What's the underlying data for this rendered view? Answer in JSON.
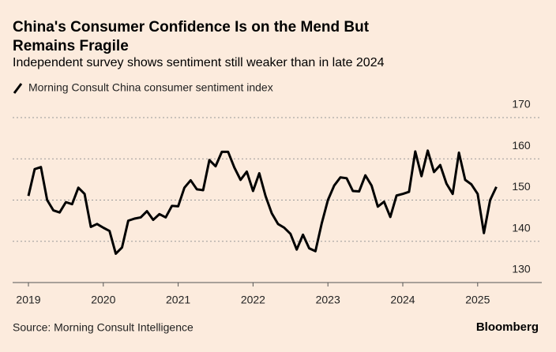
{
  "chart_data": {
    "type": "line",
    "title": "China's Consumer Confidence Is on the Mend But Remains Fragile",
    "subtitle": "Independent survey shows sentiment still weaker than in late 2024",
    "source": "Source: Morning Consult Intelligence",
    "brand": "Bloomberg",
    "categories": [
      "2019",
      null,
      null,
      null,
      null,
      null,
      null,
      null,
      null,
      null,
      null,
      null,
      "2020",
      null,
      null,
      null,
      null,
      null,
      null,
      null,
      null,
      null,
      null,
      null,
      "2021",
      null,
      null,
      null,
      null,
      null,
      null,
      null,
      null,
      null,
      null,
      null,
      "2022",
      null,
      null,
      null,
      null,
      null,
      null,
      null,
      null,
      null,
      null,
      null,
      "2023",
      null,
      null,
      null,
      null,
      null,
      null,
      null,
      null,
      null,
      null,
      null,
      "2024",
      null,
      null,
      null,
      null,
      null,
      null,
      null,
      null,
      null,
      null,
      null,
      "2025",
      null,
      null,
      null
    ],
    "series": [
      {
        "name": "Morning Consult China consumer sentiment index",
        "color": "#000000",
        "values": [
          151,
          157.5,
          158,
          150,
          147.5,
          147,
          149.5,
          149,
          153,
          151.5,
          143.5,
          144.2,
          143.3,
          142.5,
          137,
          138.5,
          145,
          145.5,
          145.8,
          147.3,
          145.2,
          146.6,
          145.8,
          148.6,
          148.5,
          153,
          154.8,
          152.6,
          152.4,
          159.7,
          158.2,
          161.7,
          161.7,
          157.9,
          154.9,
          156.9,
          152.2,
          156.5,
          151,
          146.8,
          144.2,
          143.3,
          141.8,
          138,
          141.6,
          138.3,
          137.6,
          144.3,
          150,
          153.5,
          155.5,
          155.3,
          152.2,
          152.1,
          156,
          153.5,
          148.4,
          149.6,
          145.9,
          151.1,
          151.5,
          152,
          161.8,
          155.8,
          162,
          156.8,
          158.5,
          154,
          151.5,
          161.5,
          154.9,
          153.8,
          151.5,
          142,
          150,
          153.2
        ]
      }
    ],
    "ylim": [
      130,
      170
    ],
    "yticks": [
      130,
      140,
      150,
      160,
      170
    ],
    "grid": true
  }
}
